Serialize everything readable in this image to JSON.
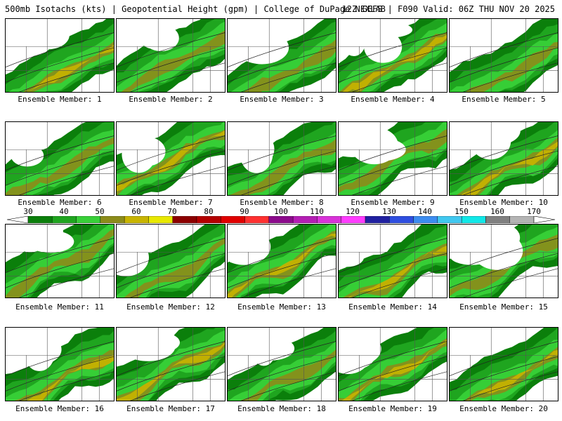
{
  "header": {
    "left": "500mb Isotachs (kts) | Geopotential Height (gpm) | College of DuPage NEXLAB",
    "right": "12Z GEFS | F090 Valid: 06Z THU NOV 20 2025"
  },
  "colorbar": {
    "labels": [
      "30",
      "40",
      "50",
      "60",
      "70",
      "80",
      "90",
      "100",
      "110",
      "120",
      "130",
      "140",
      "150",
      "160",
      "170"
    ],
    "colors": [
      "#0b7f0b",
      "#1fa51f",
      "#38d038",
      "#8c8c1a",
      "#c8b400",
      "#e8e800",
      "#8c0000",
      "#b40000",
      "#e00000",
      "#ff3030",
      "#8c0a8c",
      "#b41eb4",
      "#d832d8",
      "#ff3cff",
      "#2020a0",
      "#2e4ee0",
      "#3c8cf0",
      "#40c8f0",
      "#10e8e8",
      "#808080",
      "#b4b4b4"
    ]
  },
  "members": [
    {
      "label": "Ensemble Member: 1"
    },
    {
      "label": "Ensemble Member: 2"
    },
    {
      "label": "Ensemble Member: 3"
    },
    {
      "label": "Ensemble Member: 4"
    },
    {
      "label": "Ensemble Member: 5"
    },
    {
      "label": "Ensemble Member: 6"
    },
    {
      "label": "Ensemble Member: 7"
    },
    {
      "label": "Ensemble Member: 8"
    },
    {
      "label": "Ensemble Member: 9"
    },
    {
      "label": "Ensemble Member: 10"
    },
    {
      "label": "Ensemble Member: 11"
    },
    {
      "label": "Ensemble Member: 12"
    },
    {
      "label": "Ensemble Member: 13"
    },
    {
      "label": "Ensemble Member: 14"
    },
    {
      "label": "Ensemble Member: 15"
    },
    {
      "label": "Ensemble Member: 16"
    },
    {
      "label": "Ensemble Member: 17"
    },
    {
      "label": "Ensemble Member: 18"
    },
    {
      "label": "Ensemble Member: 19"
    },
    {
      "label": "Ensemble Member: 20"
    }
  ]
}
